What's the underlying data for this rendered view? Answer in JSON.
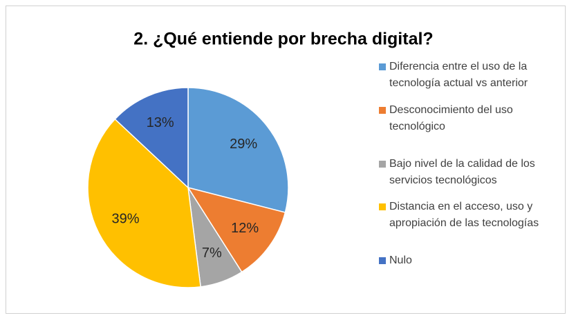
{
  "chart_data": {
    "type": "pie",
    "title": "2. ¿Qué entiende por brecha digital?",
    "categories": [
      "Diferencia entre el uso de la tecnología actual vs anterior",
      "Desconocimiento del uso tecnológico",
      "Bajo nivel de la calidad de los servicios tecnológicos",
      "Distancia en el acceso, uso y apropiación de las tecnologías",
      "Nulo"
    ],
    "values": [
      29,
      12,
      7,
      39,
      13
    ],
    "value_labels": [
      "29%",
      "12%",
      "7%",
      "39%",
      "13%"
    ],
    "colors": [
      "#5b9bd5",
      "#ed7d31",
      "#a5a5a5",
      "#ffc000",
      "#4472c4"
    ],
    "legend": "right"
  }
}
